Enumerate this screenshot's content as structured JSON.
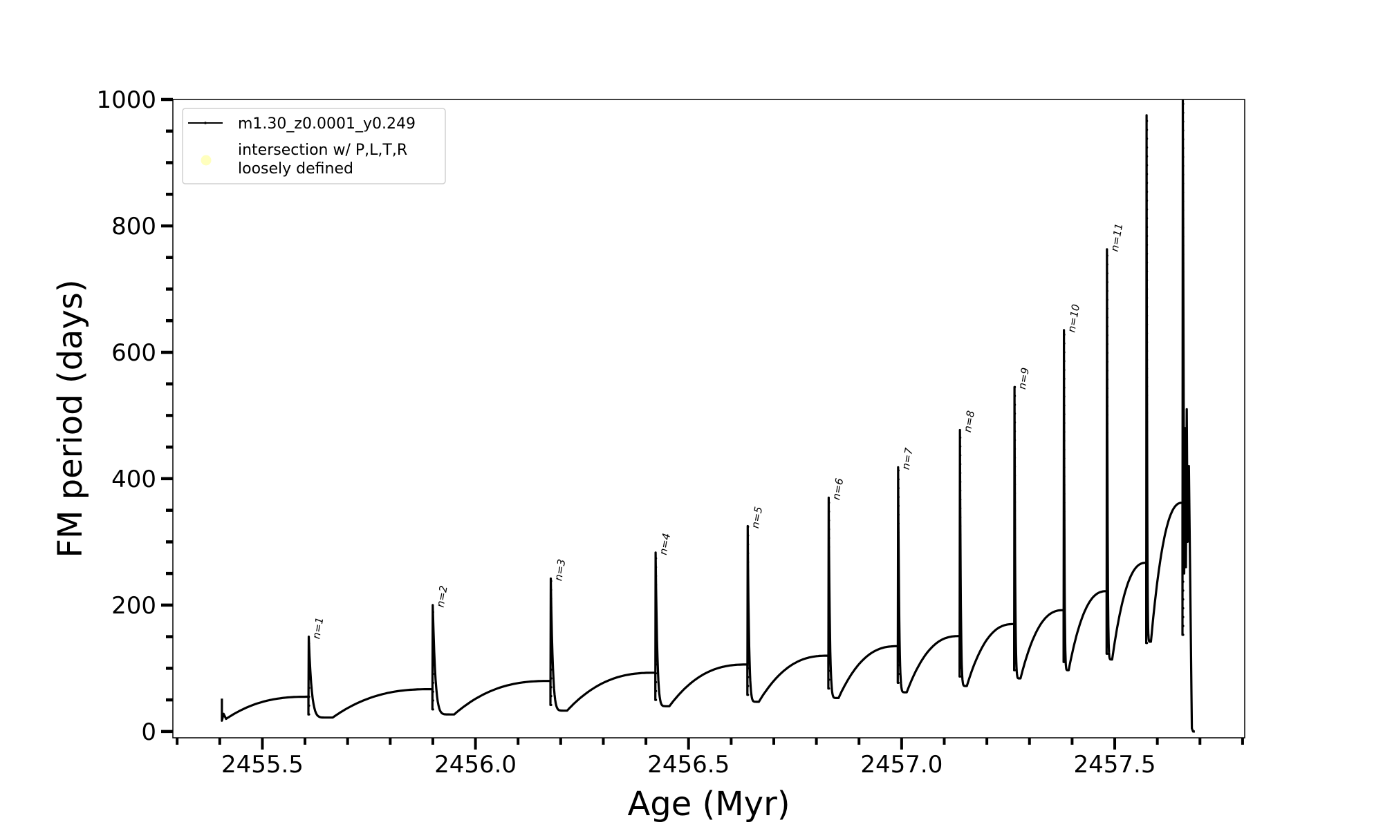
{
  "chart_data": {
    "type": "line",
    "title": "",
    "xlabel": "Age (Myr)",
    "ylabel": "FM period (days)",
    "xlim": [
      2455.29,
      2457.805
    ],
    "ylim": [
      -10,
      1000
    ],
    "xticks": [
      2455.5,
      2456.0,
      2456.5,
      2457.0,
      2457.5
    ],
    "xtick_labels": [
      "2455.5",
      "2456.0",
      "2456.5",
      "2457.0",
      "2457.5"
    ],
    "xminor_step": 0.1,
    "yticks": [
      0,
      200,
      400,
      600,
      800,
      1000
    ],
    "ytick_labels": [
      "0",
      "200",
      "400",
      "600",
      "800",
      "1000"
    ],
    "yminor_step": 50,
    "grid": false,
    "legend_placement": "upper-left",
    "legend": [
      {
        "label": "m1.30_z0.0001_y0.249",
        "marker": "line-dot",
        "color": "#000000"
      },
      {
        "label_lines": [
          "intersection w/ P,L,T,R",
          "loosely defined"
        ],
        "marker": "circle",
        "color": "#ffffb3"
      }
    ],
    "series": [
      {
        "name": "m1.30_z0.0001_y0.249",
        "color": "#000000",
        "start": {
          "age": 2455.405,
          "period_high": 52,
          "period_low": 17,
          "min_age": 2455.415,
          "min_period": 20
        },
        "pulses": [
          {
            "label": "n=1",
            "age": 2455.608,
            "before": 55,
            "low": 27,
            "peak": 150,
            "min_age": 2455.665,
            "min_period": 22
          },
          {
            "label": "n=2",
            "age": 2455.899,
            "before": 67,
            "low": 35,
            "peak": 200,
            "min_age": 2455.95,
            "min_period": 27
          },
          {
            "label": "n=3",
            "age": 2456.176,
            "before": 80,
            "low": 42,
            "peak": 242,
            "min_age": 2456.215,
            "min_period": 33
          },
          {
            "label": "n=4",
            "age": 2456.422,
            "before": 93,
            "low": 50,
            "peak": 283,
            "min_age": 2456.455,
            "min_period": 40
          },
          {
            "label": "n=5",
            "age": 2456.638,
            "before": 106,
            "low": 58,
            "peak": 325,
            "min_age": 2456.665,
            "min_period": 47
          },
          {
            "label": "n=6",
            "age": 2456.828,
            "before": 120,
            "low": 68,
            "peak": 370,
            "min_age": 2456.852,
            "min_period": 53
          },
          {
            "label": "n=7",
            "age": 2456.991,
            "before": 135,
            "low": 77,
            "peak": 418,
            "min_age": 2457.012,
            "min_period": 62
          },
          {
            "label": "n=8",
            "age": 2457.136,
            "before": 151,
            "low": 87,
            "peak": 477,
            "min_age": 2457.153,
            "min_period": 72
          },
          {
            "label": "n=9",
            "age": 2457.264,
            "before": 170,
            "low": 97,
            "peak": 545,
            "min_age": 2457.279,
            "min_period": 84
          },
          {
            "label": "n=10",
            "age": 2457.38,
            "before": 192,
            "low": 110,
            "peak": 635,
            "min_age": 2457.392,
            "min_period": 97
          },
          {
            "label": "n=11",
            "age": 2457.481,
            "before": 222,
            "low": 123,
            "peak": 763,
            "min_age": 2457.494,
            "min_period": 114
          },
          {
            "label": "",
            "age": 2457.574,
            "before": 267,
            "low": 140,
            "peak": 975,
            "min_age": 2457.585,
            "min_period": 142
          },
          {
            "label": "",
            "age": 2457.659,
            "before": 362,
            "low": 153,
            "peak": 1000
          }
        ],
        "tail": [
          [
            2457.663,
            250
          ],
          [
            2457.665,
            480
          ],
          [
            2457.667,
            260
          ],
          [
            2457.669,
            510
          ],
          [
            2457.671,
            300
          ],
          [
            2457.674,
            420
          ],
          [
            2457.677,
            250
          ],
          [
            2457.68,
            60
          ],
          [
            2457.681,
            5
          ],
          [
            2457.684,
            0
          ],
          [
            2457.688,
            0
          ]
        ]
      }
    ]
  }
}
